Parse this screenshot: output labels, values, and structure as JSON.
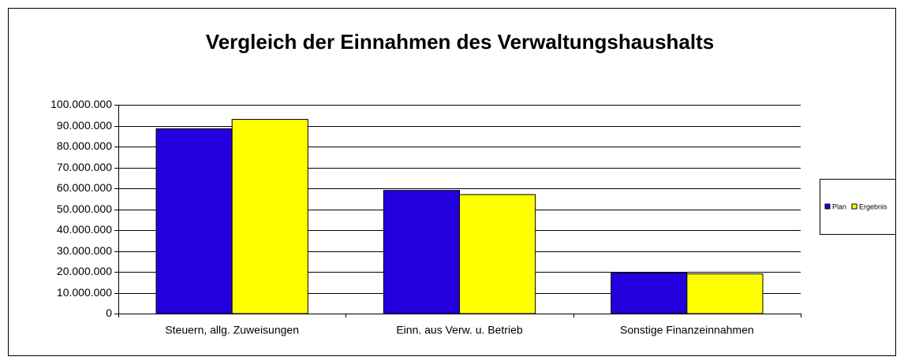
{
  "chart_data": {
    "type": "bar",
    "title": "Vergleich der Einnahmen des Verwaltungshaushalts",
    "categories": [
      "Steuern, allg. Zuweisungen",
      "Einn. aus Verw. u. Betrieb",
      "Sonstige Finanzeinnahmen"
    ],
    "series": [
      {
        "name": "Plan",
        "color": "#2200dd",
        "values": [
          88500000,
          59000000,
          19500000
        ]
      },
      {
        "name": "Ergebnis",
        "color": "#ffff00",
        "values": [
          93000000,
          57000000,
          19000000
        ]
      }
    ],
    "ylim": [
      0,
      100000000
    ],
    "yticks": [
      0,
      {
        "value": 10000000,
        "label": "10.000.000"
      },
      {
        "value": 20000000,
        "label": "20.000.000"
      },
      {
        "value": 30000000,
        "label": "30.000.000"
      },
      {
        "value": 40000000,
        "label": "40.000.000"
      },
      {
        "value": 50000000,
        "label": "50.000.000"
      },
      {
        "value": 60000000,
        "label": "60.000.000"
      },
      {
        "value": 70000000,
        "label": "70.000.000"
      },
      {
        "value": 80000000,
        "label": "80.000.000"
      },
      {
        "value": 90000000,
        "label": "90.000.000"
      },
      {
        "value": 100000000,
        "label": "100.000.000"
      }
    ],
    "grid": true,
    "legend": "right"
  }
}
